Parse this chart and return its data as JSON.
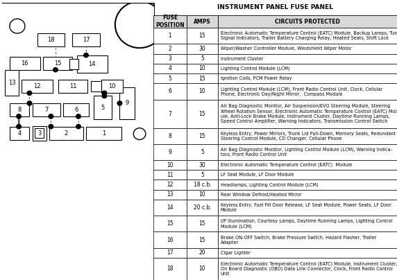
{
  "title": "INSTRUMENT PANEL FUSE PANEL",
  "rows": [
    [
      "1",
      "15",
      "Electronic Automatic Temperature Control (EATC) Module, Backup Lamps, Turn\nSignal Indicators, Trailer Battery Charging Relay, Heated Seats, Shift Lock"
    ],
    [
      "2",
      "30",
      "Wiper/Washer Controller Module, Windshield Wiper Motor"
    ],
    [
      "3",
      "5",
      "Instrument Cluster"
    ],
    [
      "4",
      "10",
      "Lighting Control Module (LCM)"
    ],
    [
      "5",
      "15",
      "Ignition Coils, PCM Power Relay"
    ],
    [
      "6",
      "10",
      "Lighting Control Module (LCM), Front Radio Control Unit, Clock, Cellular\nPhone, Electronic Day/Night Mirror,  Compass Module"
    ],
    [
      "7",
      "15",
      "Air Bag Diagnostic Monitor, Air Suspension/EVO Steering Module, Steering\nWheel Rotation Sensor, Electronic Automatic Temperature Control (EATC) Mod-\nule, Anti-Lock Brake Module, Instrument Cluster, Daytime Running Lamps,\nSpeed Control Amplifier, Warning Indicators, Transmission Control Switch"
    ],
    [
      "8",
      "15",
      "Keyless Entry, Power Mirrors, Trunk Lid Pull-Down, Memory Seats, Redundant\nSteering Control Module, CD Changer, Cellular Phone"
    ],
    [
      "9",
      "5",
      "Air Bag Diagnostic Monitor, Lighting Control Module (LCM), Warning Indica-\ntors, Front Radio Control Unit"
    ],
    [
      "10",
      "30",
      "Electronic Automatic Temperature Control (EATC)  Module"
    ],
    [
      "11",
      "5",
      "LF Seat Module, LF Door Module"
    ],
    [
      "12",
      "18 c.b.",
      "Headlamps, Lighting Control Module (LCM)"
    ],
    [
      "13",
      "10",
      "Rear Window Defrost/Heated Mirror"
    ],
    [
      "14",
      "20 c.b.",
      "Keyless Entry, Fuel Fill Door Release, LF Seat Module, Power Seats, LF Door\nModule"
    ],
    [
      "15",
      "15",
      "I/P Illumination, Courtesy Lamps, Daytime Running Lamps, Lighting Control\nModule (LCM)"
    ],
    [
      "16",
      "15",
      "Brake ON-OFF Switch, Brake Pressure Switch, Hazard Flasher, Trailer\nAdapter"
    ],
    [
      "17",
      "20",
      "Cigar Lighter"
    ],
    [
      "18",
      "10",
      "Electronic Automatic Temperature Control (EATC) Module, Instrument Cluster,\nOn Board Diagnostic (OBD) Data Link Connector, Clock, Front Radio Control\nUnit"
    ]
  ],
  "bg_color": "#ffffff",
  "text_color": "#000000"
}
